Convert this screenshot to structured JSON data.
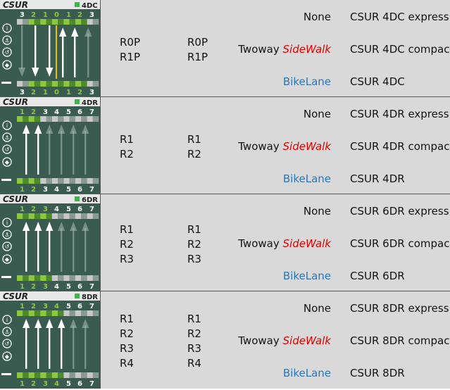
{
  "rows": [
    {
      "code": "4DC",
      "lane_numbers": [
        "3",
        "2",
        "1",
        "0",
        "1",
        "2",
        "3"
      ],
      "lanes_a": [
        "R0P",
        "R1P"
      ],
      "lanes_b": [
        "R0P",
        "R1P"
      ],
      "side_none": "None",
      "side_twoway": "Twoway",
      "side_sidewalk": "SideWalk",
      "side_bike": "BikeLane",
      "road_express": "CSUR 4DC express",
      "road_compact": "CSUR 4DC compact",
      "road_plain": "CSUR 4DC"
    },
    {
      "code": "4DR",
      "lane_numbers": [
        "1",
        "2",
        "3",
        "4",
        "5",
        "6",
        "7"
      ],
      "lanes_a": [
        "R1",
        "R2"
      ],
      "lanes_b": [
        "R1",
        "R2"
      ],
      "side_none": "None",
      "side_twoway": "Twoway",
      "side_sidewalk": "SideWalk",
      "side_bike": "BikeLane",
      "road_express": "CSUR 4DR express",
      "road_compact": "CSUR 4DR compact",
      "road_plain": "CSUR 4DR"
    },
    {
      "code": "6DR",
      "lane_numbers": [
        "1",
        "2",
        "3",
        "4",
        "5",
        "6",
        "7"
      ],
      "lanes_a": [
        "R1",
        "R2",
        "R3"
      ],
      "lanes_b": [
        "R1",
        "R2",
        "R3"
      ],
      "side_none": "None",
      "side_twoway": "Twoway",
      "side_sidewalk": "SideWalk",
      "side_bike": "BikeLane",
      "road_express": "CSUR 6DR express",
      "road_compact": "CSUR 6DR compact",
      "road_plain": "CSUR 6DR"
    },
    {
      "code": "8DR",
      "lane_numbers": [
        "1",
        "2",
        "3",
        "4",
        "5",
        "6",
        "7"
      ],
      "lanes_a": [
        "R1",
        "R2",
        "R3",
        "R4"
      ],
      "lanes_b": [
        "R1",
        "R2",
        "R3",
        "R4"
      ],
      "side_none": "None",
      "side_twoway": "Twoway",
      "side_sidewalk": "SideWalk",
      "side_bike": "BikeLane",
      "road_express": "CSUR 8DR express",
      "road_compact": "CSUR 8DR compact",
      "road_plain": "CSUR 8DR"
    }
  ],
  "logo_text": "CSUR",
  "colors": {
    "thumb_bg": "#3a5b4f",
    "lane_green": "#8dc63f",
    "sidewalk_red": "#e00000",
    "bikelane_blue": "#2e75b6",
    "panel_gray": "#d9d9d9"
  },
  "icons": [
    "info-icon",
    "bike-icon",
    "u-turn-icon",
    "diamond-icon"
  ]
}
